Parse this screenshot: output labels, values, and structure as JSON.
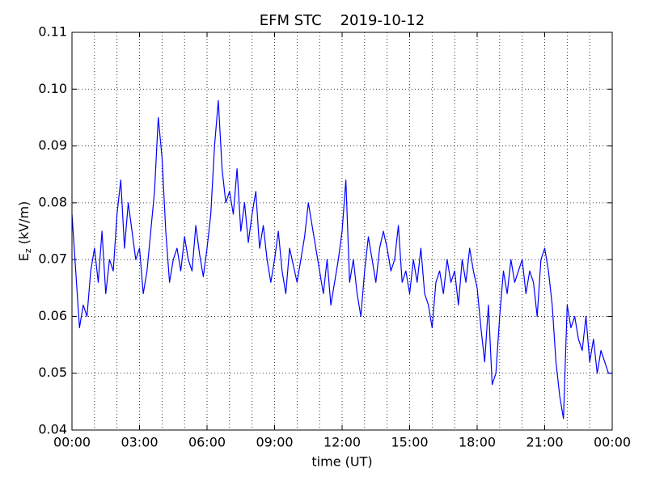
{
  "chart_data": {
    "type": "line",
    "title": "EFM STC    2019-10-12",
    "xlabel": "time (UT)",
    "ylabel": [
      "E",
      "z",
      "(kV/m)"
    ],
    "xlim": [
      0,
      1440
    ],
    "xticks": [
      {
        "value": 0,
        "label": "00:00"
      },
      {
        "value": 180,
        "label": "03:00"
      },
      {
        "value": 360,
        "label": "06:00"
      },
      {
        "value": 540,
        "label": "09:00"
      },
      {
        "value": 720,
        "label": "12:00"
      },
      {
        "value": 900,
        "label": "15:00"
      },
      {
        "value": 1080,
        "label": "18:00"
      },
      {
        "value": 1260,
        "label": "21:00"
      },
      {
        "value": 1440,
        "label": "00:00"
      }
    ],
    "x_minor_ticks": [
      60,
      120,
      240,
      300,
      420,
      480,
      600,
      660,
      780,
      840,
      960,
      1020,
      1140,
      1200,
      1320,
      1380
    ],
    "ylim": [
      0.04,
      0.11
    ],
    "yticks": [
      0.04,
      0.05,
      0.06,
      0.07,
      0.08,
      0.09,
      {
        "value": 0.1,
        "label": "0.10"
      },
      0.11
    ],
    "grid": true,
    "x": [
      0,
      10,
      20,
      30,
      40,
      50,
      60,
      70,
      80,
      90,
      100,
      110,
      120,
      130,
      140,
      150,
      160,
      170,
      180,
      190,
      200,
      210,
      220,
      230,
      240,
      250,
      260,
      270,
      280,
      290,
      300,
      310,
      320,
      330,
      340,
      350,
      360,
      370,
      380,
      390,
      400,
      410,
      420,
      430,
      440,
      450,
      460,
      470,
      480,
      490,
      500,
      510,
      520,
      530,
      540,
      550,
      560,
      570,
      580,
      590,
      600,
      610,
      620,
      630,
      640,
      650,
      660,
      670,
      680,
      690,
      700,
      710,
      720,
      730,
      740,
      750,
      760,
      770,
      780,
      790,
      800,
      810,
      820,
      830,
      840,
      850,
      860,
      870,
      880,
      890,
      900,
      910,
      920,
      930,
      940,
      950,
      960,
      970,
      980,
      990,
      1000,
      1010,
      1020,
      1030,
      1040,
      1050,
      1060,
      1070,
      1080,
      1090,
      1100,
      1110,
      1120,
      1130,
      1140,
      1150,
      1160,
      1170,
      1180,
      1190,
      1200,
      1210,
      1220,
      1230,
      1240,
      1250,
      1260,
      1270,
      1280,
      1290,
      1300,
      1310,
      1320,
      1330,
      1340,
      1350,
      1360,
      1370,
      1380,
      1390,
      1400,
      1410,
      1420,
      1430,
      1440
    ],
    "series": [
      {
        "name": "Ez",
        "color": "#0000ff",
        "values": [
          0.078,
          0.068,
          0.058,
          0.062,
          0.06,
          0.068,
          0.072,
          0.066,
          0.075,
          0.064,
          0.07,
          0.068,
          0.078,
          0.084,
          0.072,
          0.08,
          0.075,
          0.07,
          0.072,
          0.064,
          0.068,
          0.075,
          0.082,
          0.095,
          0.088,
          0.075,
          0.066,
          0.07,
          0.072,
          0.068,
          0.074,
          0.07,
          0.068,
          0.076,
          0.071,
          0.067,
          0.072,
          0.078,
          0.09,
          0.098,
          0.086,
          0.08,
          0.082,
          0.078,
          0.086,
          0.075,
          0.08,
          0.073,
          0.078,
          0.082,
          0.072,
          0.076,
          0.07,
          0.066,
          0.07,
          0.075,
          0.068,
          0.064,
          0.072,
          0.069,
          0.066,
          0.07,
          0.074,
          0.08,
          0.076,
          0.072,
          0.068,
          0.064,
          0.07,
          0.062,
          0.066,
          0.07,
          0.075,
          0.084,
          0.066,
          0.07,
          0.064,
          0.06,
          0.068,
          0.074,
          0.07,
          0.066,
          0.072,
          0.075,
          0.072,
          0.068,
          0.07,
          0.076,
          0.066,
          0.068,
          0.064,
          0.07,
          0.066,
          0.072,
          0.064,
          0.062,
          0.058,
          0.066,
          0.068,
          0.064,
          0.07,
          0.066,
          0.068,
          0.062,
          0.07,
          0.066,
          0.072,
          0.068,
          0.065,
          0.058,
          0.052,
          0.062,
          0.048,
          0.05,
          0.06,
          0.068,
          0.064,
          0.07,
          0.066,
          0.068,
          0.07,
          0.064,
          0.068,
          0.066,
          0.06,
          0.07,
          0.072,
          0.068,
          0.062,
          0.052,
          0.046,
          0.042,
          0.062,
          0.058,
          0.06,
          0.056,
          0.054,
          0.06,
          0.052,
          0.056,
          0.05,
          0.054,
          0.052,
          0.05,
          0.05
        ]
      }
    ]
  }
}
